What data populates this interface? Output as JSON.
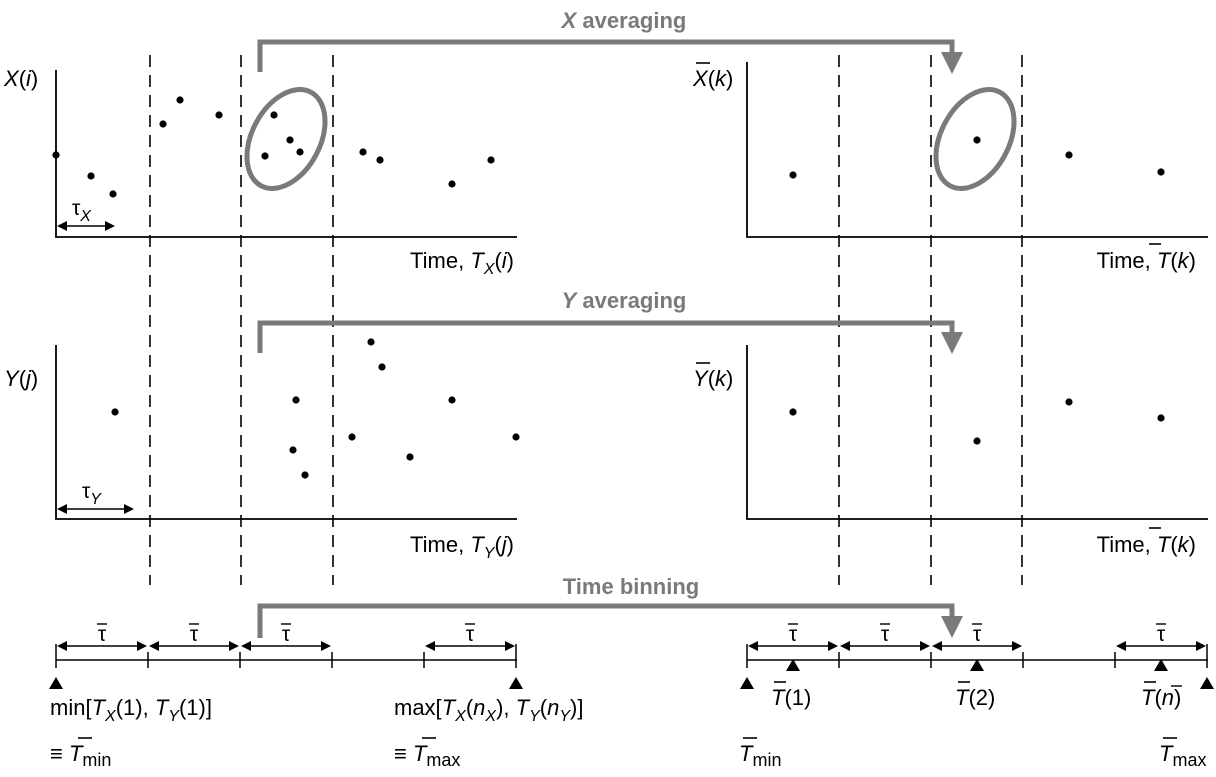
{
  "headers": {
    "x_averaging": [
      "X",
      " averaging"
    ],
    "y_averaging": [
      "Y",
      " averaging"
    ],
    "time_binning": "Time binning"
  },
  "axes": {
    "x_raw": {
      "ylabel": [
        "X",
        "(",
        "i",
        ")"
      ],
      "xlabel": [
        "Time, ",
        "T",
        "X",
        "(",
        "i",
        ")"
      ],
      "tau": [
        "τ",
        "X"
      ]
    },
    "x_avg": {
      "ylabel": [
        "X",
        "(",
        "k",
        ")"
      ],
      "xlabel": [
        "Time, ",
        "T",
        "(",
        "k",
        ")"
      ]
    },
    "y_raw": {
      "ylabel": [
        "Y",
        "(",
        "j",
        ")"
      ],
      "xlabel": [
        "Time, ",
        "T",
        "Y",
        "(",
        "j",
        ")"
      ],
      "tau": [
        "τ",
        "Y"
      ]
    },
    "y_avg": {
      "ylabel": [
        "Y",
        "(",
        "k",
        ")"
      ],
      "xlabel": [
        "Time, ",
        "T",
        "(",
        "k",
        ")"
      ]
    }
  },
  "timeline_left": {
    "bin_labels": [
      "τ",
      "τ",
      "τ",
      "τ"
    ],
    "min_label": [
      "min[",
      "T",
      "X",
      "(1), ",
      "T",
      "Y",
      "(1)]"
    ],
    "min_equiv": [
      "≡ ",
      "T",
      "min"
    ],
    "max_label": [
      "max[",
      "T",
      "X",
      "(",
      "n",
      "X",
      "), ",
      "T",
      "Y",
      "(",
      "n",
      "Y",
      ")]"
    ],
    "max_equiv": [
      "≡ ",
      "T",
      "max"
    ]
  },
  "timeline_right": {
    "bin_labels": [
      "τ",
      "τ",
      "τ",
      "τ"
    ],
    "centers": [
      [
        "T",
        "(1)"
      ],
      [
        "T",
        "(2)"
      ],
      [
        "T",
        "(",
        "n",
        ")"
      ]
    ],
    "min_label": [
      "T",
      "min"
    ],
    "max_label": [
      "T",
      "max"
    ]
  },
  "colors": {
    "accent_grey": "#7a7a7a",
    "ink": "#000000"
  }
}
